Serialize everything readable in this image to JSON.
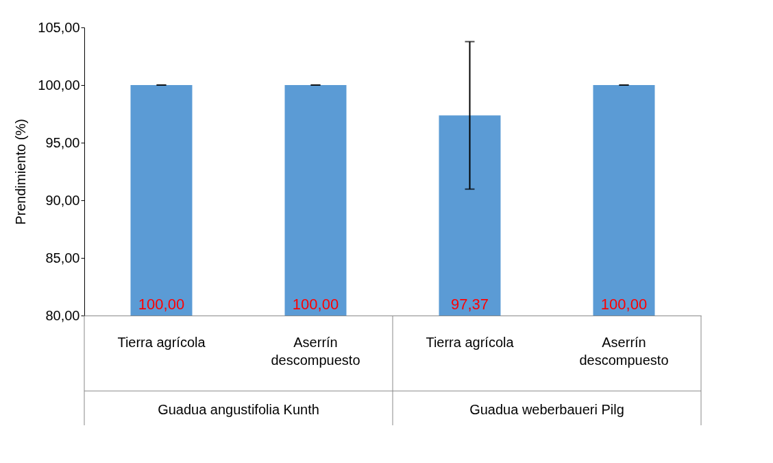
{
  "chart_data": {
    "type": "bar",
    "ylabel": "Prendimiento (%)",
    "categories": [
      "Tierra agrícola",
      "Aserrín descompuesto",
      "Tierra agrícola",
      "Aserrín descompuesto"
    ],
    "values": [
      100,
      100,
      97.37,
      100
    ],
    "color": "#5b9bd5",
    "errors": [
      0,
      0,
      6.4,
      0
    ],
    "value_labels": [
      "100,00",
      "100,00",
      "97,37",
      "100,00"
    ],
    "ylim": [
      80,
      105
    ],
    "yticks": [
      {
        "value": 80,
        "label": "80,00"
      },
      {
        "value": 85,
        "label": "85,00"
      },
      {
        "value": 90,
        "label": "90,00"
      },
      {
        "value": 95,
        "label": "95,00"
      },
      {
        "value": 100,
        "label": "100,00"
      },
      {
        "value": 105,
        "label": "105,00"
      }
    ],
    "annotations": [
      "Guadua angustifolia Kunth",
      "Guadua weberbaueri Pilg"
    ],
    "grid": false
  }
}
